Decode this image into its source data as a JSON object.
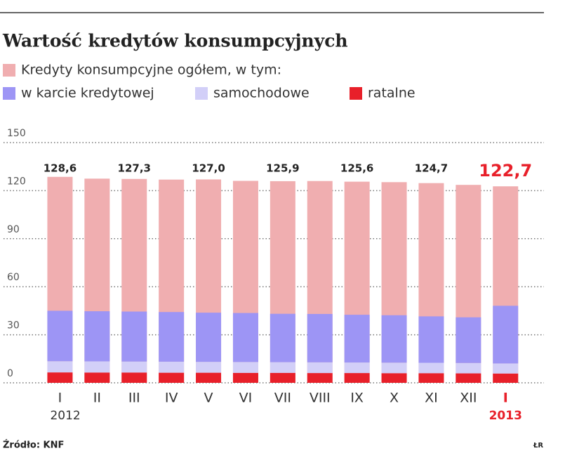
{
  "chart_data": {
    "type": "bar",
    "title": "Wartość kredytów konsumpcyjnych",
    "categories": [
      "I",
      "II",
      "III",
      "IV",
      "V",
      "VI",
      "VII",
      "VIII",
      "IX",
      "X",
      "XI",
      "XII",
      "I"
    ],
    "year_labels": [
      "2012",
      null,
      null,
      null,
      null,
      null,
      null,
      null,
      null,
      null,
      null,
      null,
      "2013"
    ],
    "series": [
      {
        "name": "Kredyty konsumpcyjne ogółem, w tym:",
        "color": "#f0aeb0",
        "values": [
          128.6,
          127.5,
          127.3,
          126.9,
          127.0,
          126.1,
          125.9,
          126.0,
          125.6,
          125.3,
          124.7,
          123.6,
          122.7
        ],
        "value_labels": [
          "128,6",
          null,
          "127,3",
          null,
          "127,0",
          null,
          "125,9",
          null,
          "125,6",
          null,
          "124,7",
          null,
          "122,7"
        ]
      },
      {
        "name": "w karcie kredytowej",
        "color": "#9d95f5",
        "values": [
          31.5,
          31.3,
          31.2,
          31.0,
          30.7,
          30.6,
          30.2,
          30.2,
          29.8,
          29.6,
          29.0,
          28.5,
          36.0
        ]
      },
      {
        "name": "samochodowe",
        "color": "#d2cff8",
        "values": [
          7.0,
          7.0,
          6.9,
          6.9,
          6.8,
          6.8,
          6.7,
          6.7,
          6.6,
          6.6,
          6.5,
          6.5,
          6.3
        ]
      },
      {
        "name": "ratalne",
        "color": "#e8202a",
        "values": [
          6.5,
          6.4,
          6.4,
          6.3,
          6.3,
          6.2,
          6.2,
          6.1,
          6.1,
          6.0,
          6.0,
          5.9,
          5.8
        ]
      }
    ],
    "ylim": [
      0,
      150
    ],
    "yticks": [
      0,
      30,
      60,
      90,
      120,
      150
    ],
    "grid": true,
    "highlight_color": "#e8202a",
    "source": "Źródło: KNF",
    "credit": "ŁR"
  }
}
